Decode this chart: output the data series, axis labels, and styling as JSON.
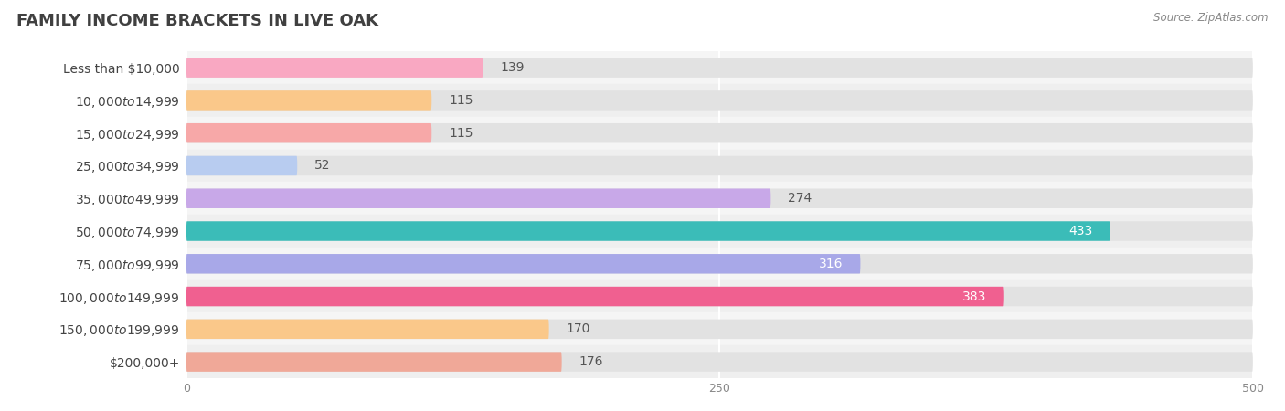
{
  "title": "FAMILY INCOME BRACKETS IN LIVE OAK",
  "source": "Source: ZipAtlas.com",
  "categories": [
    "Less than $10,000",
    "$10,000 to $14,999",
    "$15,000 to $24,999",
    "$25,000 to $34,999",
    "$35,000 to $49,999",
    "$50,000 to $74,999",
    "$75,000 to $99,999",
    "$100,000 to $149,999",
    "$150,000 to $199,999",
    "$200,000+"
  ],
  "values": [
    139,
    115,
    115,
    52,
    274,
    433,
    316,
    383,
    170,
    176
  ],
  "bar_colors": [
    "#F9A8C2",
    "#FAC88A",
    "#F7A8A8",
    "#B8CCF0",
    "#C8A8E8",
    "#3BBCB8",
    "#A8A8E8",
    "#F06090",
    "#FAC88A",
    "#F0A898"
  ],
  "value_text_colors": [
    "#555555",
    "#555555",
    "#555555",
    "#555555",
    "#555555",
    "#ffffff",
    "#ffffff",
    "#ffffff",
    "#555555",
    "#555555"
  ],
  "value_inside": [
    false,
    false,
    false,
    false,
    false,
    true,
    true,
    true,
    false,
    false
  ],
  "xlim": [
    0,
    500
  ],
  "xticks": [
    0,
    250,
    500
  ],
  "bar_height": 0.6,
  "row_colors": [
    "#f5f5f5",
    "#efefef"
  ],
  "bar_bg_color": "#e2e2e2",
  "title_fontsize": 13,
  "label_fontsize": 10,
  "value_fontsize": 10
}
